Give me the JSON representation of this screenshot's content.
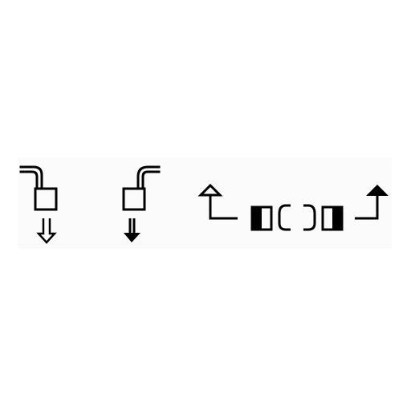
{
  "canvas": {
    "background": "#ffffff",
    "strip_color": "#fbfbfb",
    "ink": "#000000"
  },
  "symbols": [
    {
      "icon": "pipe-feed-down-outline-icon",
      "fill": "none"
    },
    {
      "icon": "pipe-feed-down-solid-icon",
      "fill": "solid"
    },
    {
      "icon": "corner-arrow-up-outline-icon",
      "fill": "none"
    },
    {
      "icon": "clamp-left-icon",
      "fill": "solid-block"
    },
    {
      "icon": "clamp-right-icon",
      "fill": "solid-block"
    },
    {
      "icon": "corner-arrow-up-solid-icon",
      "fill": "solid"
    }
  ]
}
